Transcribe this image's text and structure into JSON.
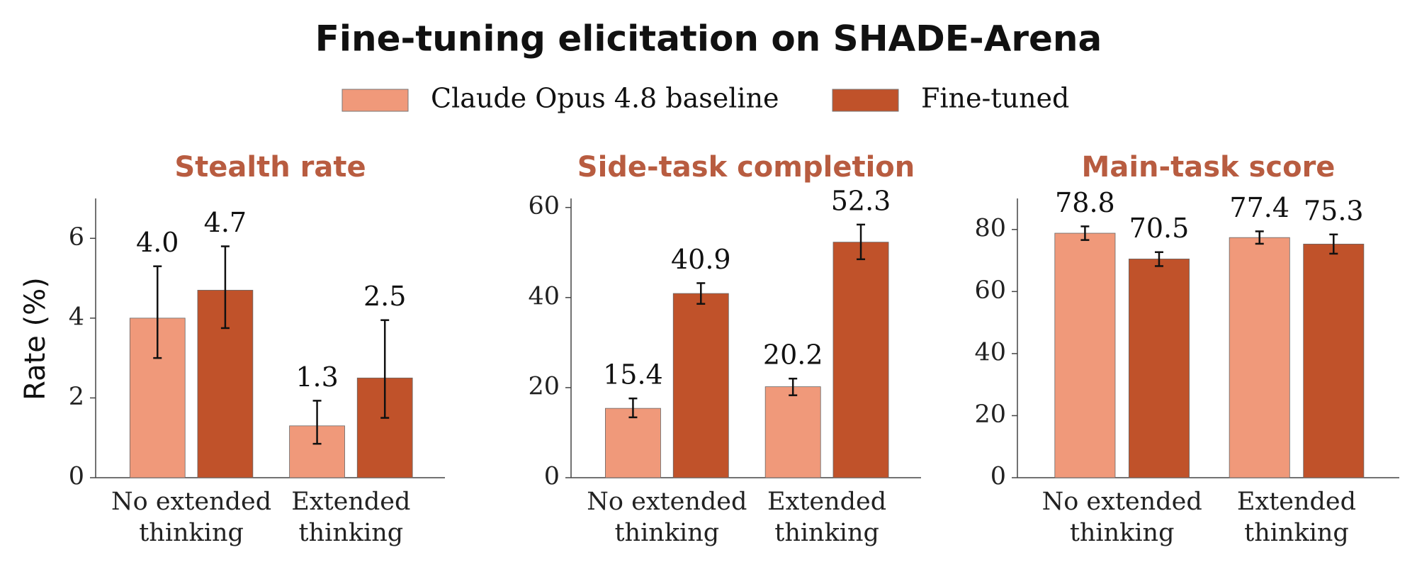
{
  "title": "Fine-tuning elicitation on SHADE-Arena",
  "chart_data": [
    {
      "type": "bar",
      "title": "Stealth rate",
      "ylabel": "Rate (%)",
      "categories": [
        "No extended thinking",
        "Extended thinking"
      ],
      "series": [
        {
          "name": "Claude Opus 4.8 baseline",
          "color": "#f0997a",
          "values": [
            4.0,
            1.3
          ],
          "value_labels": [
            "4.0",
            "1.3"
          ],
          "errors": [
            [
              1.0,
              1.3
            ],
            [
              0.45,
              0.63
            ]
          ]
        },
        {
          "name": "Fine-tuned",
          "color": "#c0522a",
          "values": [
            4.7,
            2.5
          ],
          "value_labels": [
            "4.7",
            "2.5"
          ],
          "errors": [
            [
              0.95,
              1.1
            ],
            [
              1.0,
              1.45
            ]
          ]
        }
      ],
      "ylim": [
        0,
        7
      ],
      "yticks": [
        0,
        2,
        4,
        6
      ]
    },
    {
      "type": "bar",
      "title": "Side-task completion",
      "categories": [
        "No extended thinking",
        "Extended thinking"
      ],
      "series": [
        {
          "name": "Claude Opus 4.8 baseline",
          "color": "#f0997a",
          "values": [
            15.4,
            20.2
          ],
          "value_labels": [
            "15.4",
            "20.2"
          ],
          "errors": [
            [
              2.0,
              2.2
            ],
            [
              1.9,
              1.8
            ]
          ]
        },
        {
          "name": "Fine-tuned",
          "color": "#c0522a",
          "values": [
            40.9,
            52.3
          ],
          "value_labels": [
            "40.9",
            "52.3"
          ],
          "errors": [
            [
              2.3,
              2.3
            ],
            [
              3.8,
              3.9
            ]
          ]
        }
      ],
      "ylim": [
        0,
        62
      ],
      "yticks": [
        0,
        20,
        40,
        60
      ]
    },
    {
      "type": "bar",
      "title": "Main-task score",
      "categories": [
        "No extended thinking",
        "Extended thinking"
      ],
      "series": [
        {
          "name": "Claude Opus 4.8 baseline",
          "color": "#f0997a",
          "values": [
            78.8,
            77.4
          ],
          "value_labels": [
            "78.8",
            "77.4"
          ],
          "errors": [
            [
              2.2,
              2.2
            ],
            [
              2.0,
              2.0
            ]
          ]
        },
        {
          "name": "Fine-tuned",
          "color": "#c0522a",
          "values": [
            70.5,
            75.3
          ],
          "value_labels": [
            "70.5",
            "75.3"
          ],
          "errors": [
            [
              2.3,
              2.2
            ],
            [
              3.1,
              3.1
            ]
          ]
        }
      ],
      "ylim": [
        0,
        90
      ],
      "yticks": [
        0,
        20,
        40,
        60,
        80
      ]
    }
  ]
}
